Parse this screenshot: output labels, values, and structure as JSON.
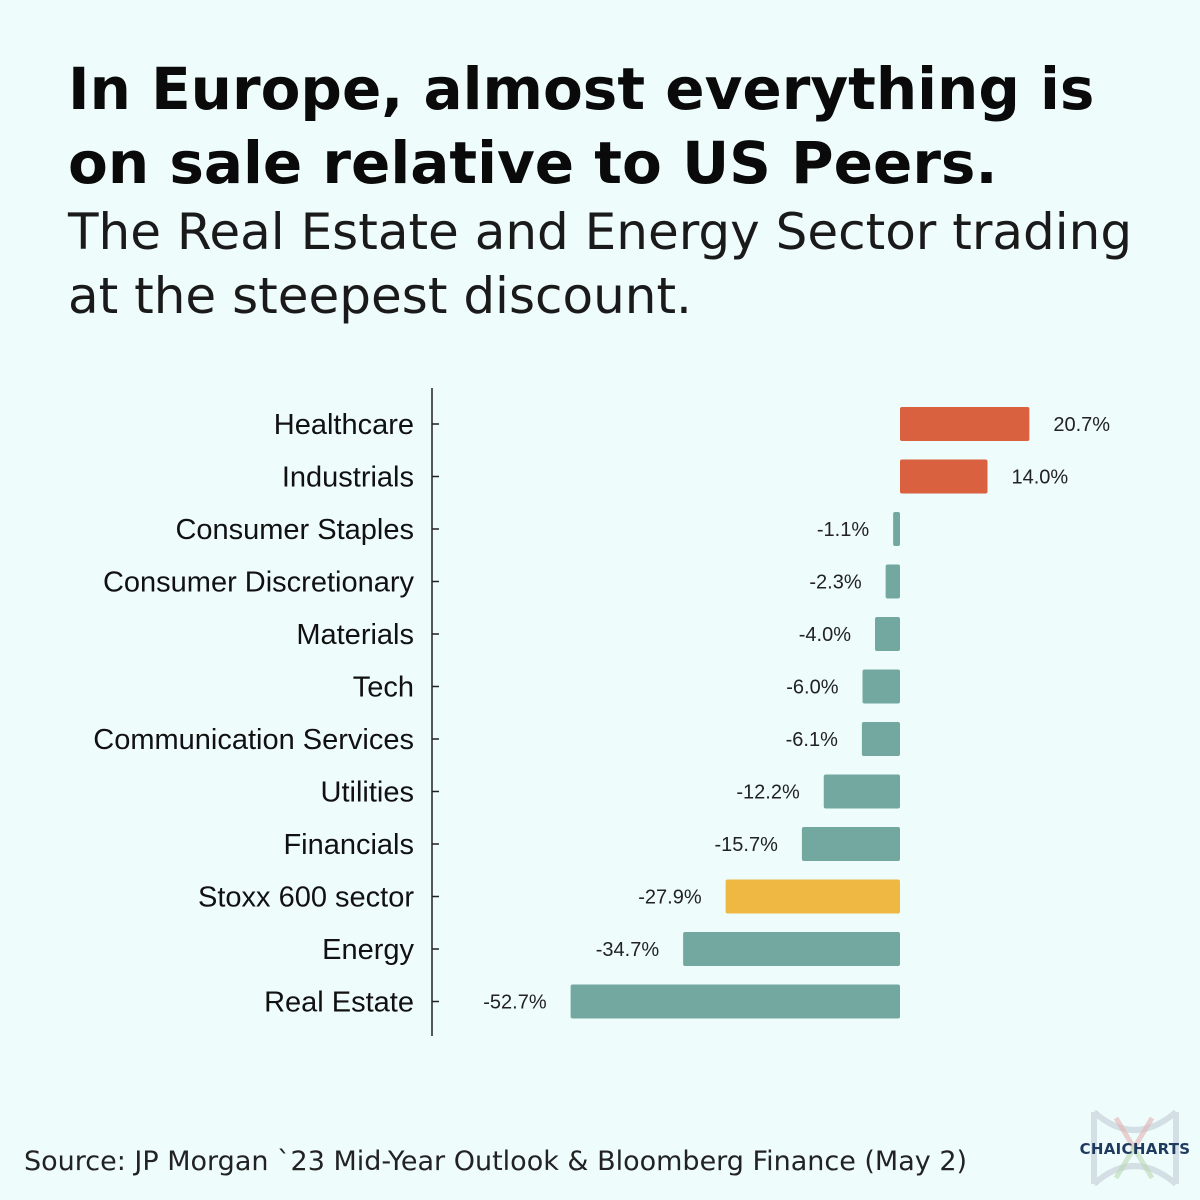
{
  "header": {
    "title": "In Europe, almost everything is on sale relative to US Peers.",
    "subtitle": "The Real Estate and Energy Sector trading at the steepest discount."
  },
  "footer": {
    "source": "Source: JP Morgan `23 Mid-Year Outlook & Bloomberg Finance (May 2)",
    "logo_text": "CHAICHARTS"
  },
  "chart_data": {
    "type": "bar",
    "orientation": "horizontal",
    "categories": [
      "Healthcare",
      "Industrials",
      "Consumer Staples",
      "Consumer Discretionary",
      "Materials",
      "Tech",
      "Communication Services",
      "Utilities",
      "Financials",
      "Stoxx 600 sector",
      "Energy",
      "Real Estate"
    ],
    "values": [
      20.7,
      14.0,
      -1.1,
      -2.3,
      -4.0,
      -6.0,
      -6.1,
      -12.2,
      -15.7,
      -27.9,
      -34.7,
      -52.7
    ],
    "value_labels": [
      "20.7%",
      "14.0%",
      "-1.1%",
      "-2.3%",
      "-4.0%",
      "-6.0%",
      "-6.1%",
      "-12.2%",
      "-15.7%",
      "-27.9%",
      "-34.7%",
      "-52.7%"
    ],
    "unit": "%",
    "colors": {
      "positive": "#d9613f",
      "negative": "#72a89f",
      "benchmark": "#eeb843"
    },
    "benchmark_category": "Stoxx 600 sector",
    "grid": false,
    "legend": false
  }
}
